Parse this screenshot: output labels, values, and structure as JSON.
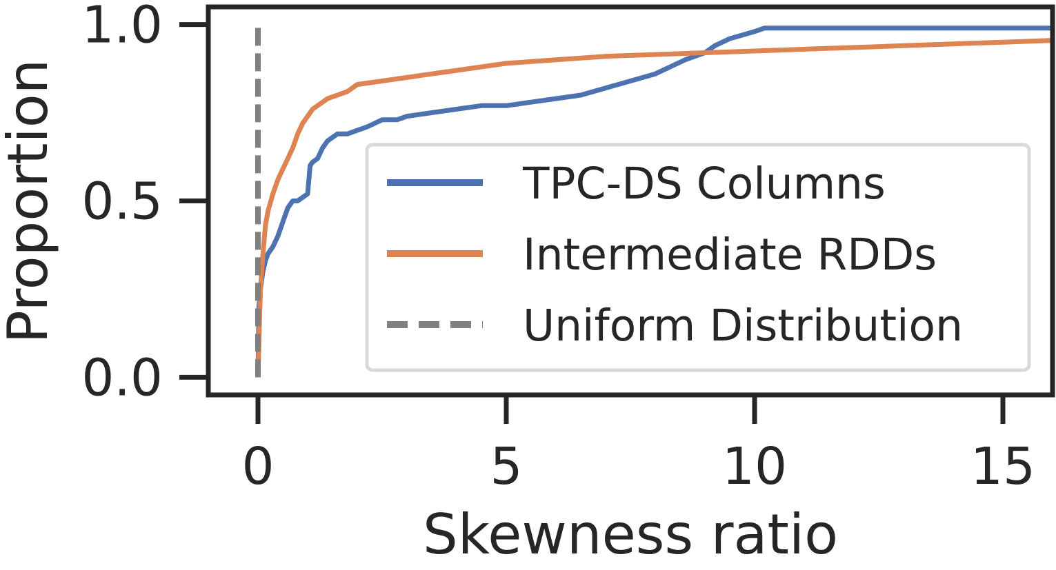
{
  "chart_data": {
    "type": "line",
    "title": "",
    "xlabel": "Skewness ratio",
    "ylabel": "Proportion",
    "xlim": [
      -1.0,
      16.0
    ],
    "ylim": [
      -0.05,
      1.05
    ],
    "xticks": [
      0,
      5,
      10,
      15
    ],
    "xtick_labels": [
      "0",
      "5",
      "10",
      "15"
    ],
    "yticks": [
      0.0,
      0.5,
      1.0
    ],
    "ytick_labels": [
      "0.0",
      "0.5",
      "1.0"
    ],
    "grid": false,
    "legend_position": "center-right",
    "series": [
      {
        "name": "TPC-DS Columns",
        "color": "#4c72b0",
        "dashed": false,
        "x": [
          0.0,
          0.02,
          0.05,
          0.1,
          0.15,
          0.2,
          0.25,
          0.3,
          0.4,
          0.5,
          0.6,
          0.7,
          0.8,
          0.9,
          1.0,
          1.05,
          1.1,
          1.2,
          1.3,
          1.4,
          1.5,
          1.6,
          1.8,
          2.0,
          2.2,
          2.5,
          2.8,
          3.0,
          3.5,
          4.0,
          4.5,
          5.0,
          5.5,
          6.0,
          6.5,
          7.0,
          7.5,
          8.0,
          8.3,
          8.6,
          9.0,
          9.2,
          9.5,
          10.0,
          10.2,
          11.0,
          12.0,
          13.0,
          14.0,
          15.0,
          16.0
        ],
        "y": [
          0.0,
          0.2,
          0.25,
          0.3,
          0.33,
          0.35,
          0.36,
          0.37,
          0.4,
          0.44,
          0.48,
          0.5,
          0.5,
          0.51,
          0.52,
          0.6,
          0.61,
          0.62,
          0.65,
          0.67,
          0.68,
          0.69,
          0.69,
          0.7,
          0.71,
          0.73,
          0.73,
          0.74,
          0.75,
          0.76,
          0.77,
          0.77,
          0.78,
          0.79,
          0.8,
          0.82,
          0.84,
          0.86,
          0.88,
          0.9,
          0.92,
          0.94,
          0.96,
          0.98,
          0.99,
          0.99,
          0.99,
          0.99,
          0.99,
          0.99,
          0.99
        ]
      },
      {
        "name": "Intermediate RDDs",
        "color": "#dd8452",
        "dashed": false,
        "x": [
          0.0,
          0.02,
          0.05,
          0.1,
          0.15,
          0.2,
          0.3,
          0.4,
          0.5,
          0.6,
          0.7,
          0.8,
          0.9,
          1.0,
          1.1,
          1.2,
          1.4,
          1.6,
          1.8,
          2.0,
          2.5,
          3.0,
          3.5,
          4.0,
          5.0,
          6.0,
          7.0,
          8.0,
          9.0,
          10.0,
          11.0,
          12.0,
          13.0,
          14.0,
          15.0,
          16.0
        ],
        "y": [
          0.0,
          0.1,
          0.25,
          0.35,
          0.43,
          0.47,
          0.52,
          0.56,
          0.59,
          0.62,
          0.65,
          0.69,
          0.72,
          0.74,
          0.76,
          0.77,
          0.79,
          0.8,
          0.81,
          0.83,
          0.84,
          0.85,
          0.86,
          0.87,
          0.89,
          0.9,
          0.91,
          0.915,
          0.92,
          0.925,
          0.93,
          0.935,
          0.94,
          0.945,
          0.95,
          0.955
        ]
      },
      {
        "name": "Uniform Distribution",
        "color": "#808080",
        "dashed": true,
        "x": [
          0.0,
          0.0
        ],
        "y": [
          0.0,
          1.0
        ]
      }
    ]
  }
}
